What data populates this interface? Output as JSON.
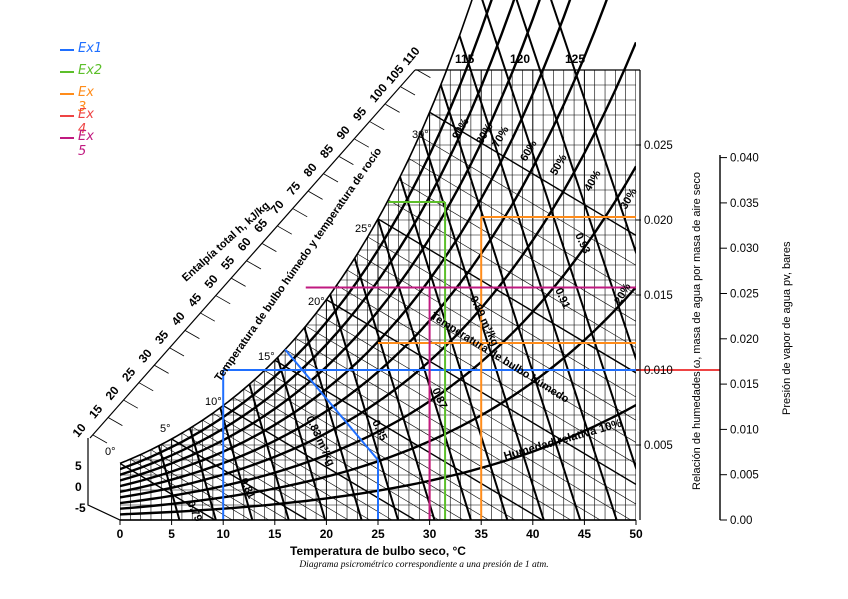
{
  "chart_data": {
    "type": "line",
    "title": "",
    "caption": "Diagrama psicrométrico correspondiente a una presión de 1 atm.",
    "xlabel": "Temperatura de bulbo seco, °C",
    "ylabel": "Relación de humedades ω, masa de agua por masa de aire seco",
    "y2label": "Presión de vapor de agua pv, bares",
    "enthalpy_label": "Entalpía total h, kJ/kg",
    "wetbulb_scale_label": "Temperatura de bulbo húmedo y temperatura de rocío",
    "wetbulb_line_label": "Temperatura de bulbo húmedo",
    "volume_label": "0.83 m³/kg",
    "volume_label_b": "0.89 m³/kg",
    "rh_label": "Humedad relativa 10%",
    "x_ticks": [
      "0",
      "5",
      "10",
      "15",
      "20",
      "25",
      "30",
      "35",
      "40",
      "45",
      "50"
    ],
    "xlim": [
      0,
      50
    ],
    "y_ticks": [
      "0.005",
      "0.010",
      "0.015",
      "0.020",
      "0.025"
    ],
    "ylim": [
      0,
      0.03
    ],
    "y2_ticks": [
      "0.00",
      "0.005",
      "0.010",
      "0.015",
      "0.020",
      "0.025",
      "0.030",
      "0.035",
      "0.040"
    ],
    "enthalpy_ticks": [
      "10",
      "15",
      "20",
      "25",
      "30",
      "35",
      "40",
      "45",
      "50",
      "55",
      "60",
      "65",
      "70",
      "75",
      "80",
      "85",
      "90",
      "95",
      "100",
      "105",
      "110"
    ],
    "enthalpy_ticks_top": [
      "115",
      "120",
      "125"
    ],
    "wetbulb_ticks": [
      "0°",
      "5°",
      "10°",
      "15°",
      "20°",
      "25°",
      "30°"
    ],
    "left_scale_ticks": [
      "5",
      "0",
      "-5"
    ],
    "rh_ticks": [
      "90%",
      "80%",
      "70%",
      "60%",
      "50%",
      "40%",
      "30%",
      "20%"
    ],
    "volume_ticks": [
      "0.79",
      "0.81",
      "0.85",
      "0.87",
      "0.91",
      "0.93"
    ],
    "legend": [
      {
        "label": "Ex1",
        "color": "#1f6fff"
      },
      {
        "label": "Ex2",
        "color": "#5cbf2a"
      },
      {
        "label": "Ex 3",
        "color": "#ff8c1a"
      },
      {
        "label": "Ex 4",
        "color": "#ee4444"
      },
      {
        "label": "Ex 5",
        "color": "#c01a80"
      }
    ],
    "series": [
      {
        "name": "Ex1",
        "color": "#1f6fff",
        "x": [
          10,
          25
        ],
        "humidity": 0.01,
        "cursor_x": 16
      },
      {
        "name": "Ex2",
        "color": "#5cbf2a",
        "x": [
          31.5
        ],
        "humidity": 0.0212
      },
      {
        "name": "Ex 3",
        "color": "#ff8c1a",
        "x": [
          35
        ],
        "humidity": 0.0202,
        "humidity_b": 0.0118
      },
      {
        "name": "Ex 4",
        "color": "#ee4444",
        "x": [
          30
        ],
        "humidity": 0.01
      },
      {
        "name": "Ex 5",
        "color": "#c01a80",
        "x": [
          30
        ],
        "humidity": 0.0155
      }
    ],
    "grid": true
  }
}
